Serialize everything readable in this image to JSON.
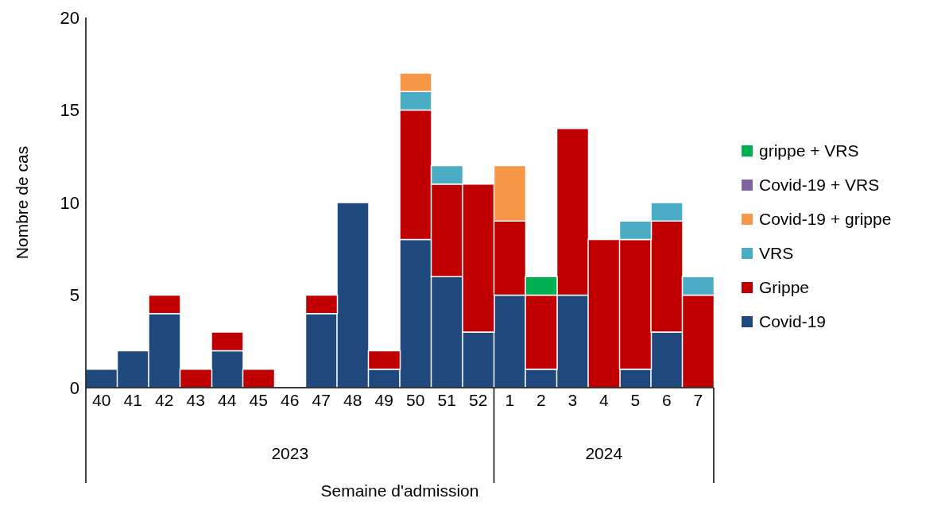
{
  "chart_data": {
    "type": "bar",
    "stacked": true,
    "xlabel": "Semaine d'admission",
    "ylabel": "Nombre de cas",
    "categories": [
      "40",
      "41",
      "42",
      "43",
      "44",
      "45",
      "46",
      "47",
      "48",
      "49",
      "50",
      "51",
      "52",
      "1",
      "2",
      "3",
      "4",
      "5",
      "6",
      "7"
    ],
    "series": [
      {
        "name": "Covid-19",
        "color": "#1f497d",
        "values": [
          1,
          2,
          4,
          0,
          2,
          0,
          0,
          4,
          10,
          1,
          8,
          6,
          3,
          5,
          1,
          5,
          0,
          1,
          3,
          0
        ]
      },
      {
        "name": "Grippe",
        "color": "#c00000",
        "values": [
          0,
          0,
          1,
          1,
          1,
          1,
          0,
          1,
          0,
          1,
          7,
          5,
          8,
          4,
          4,
          9,
          8,
          7,
          6,
          5
        ]
      },
      {
        "name": "VRS",
        "color": "#4bacc6",
        "values": [
          0,
          0,
          0,
          0,
          0,
          0,
          0,
          0,
          0,
          0,
          1,
          1,
          0,
          0,
          0,
          0,
          0,
          1,
          1,
          1
        ]
      },
      {
        "name": "Covid-19 + grippe",
        "color": "#f79646",
        "values": [
          0,
          0,
          0,
          0,
          0,
          0,
          0,
          0,
          0,
          0,
          1,
          0,
          0,
          3,
          0,
          0,
          0,
          0,
          0,
          0
        ]
      },
      {
        "name": "Covid-19 + VRS",
        "color": "#8064a2",
        "values": [
          0,
          0,
          0,
          0,
          0,
          0,
          0,
          0,
          0,
          0,
          0,
          0,
          0,
          0,
          0,
          0,
          0,
          0,
          0,
          0
        ]
      },
      {
        "name": "grippe + VRS",
        "color": "#00b050",
        "values": [
          0,
          0,
          0,
          0,
          0,
          0,
          0,
          0,
          0,
          0,
          0,
          0,
          0,
          0,
          1,
          0,
          0,
          0,
          0,
          0
        ]
      }
    ],
    "ylim": [
      0,
      20
    ],
    "yticks": [
      0,
      5,
      10,
      15,
      20
    ],
    "legend": "right",
    "annotations": [
      "2023",
      "2024"
    ]
  }
}
